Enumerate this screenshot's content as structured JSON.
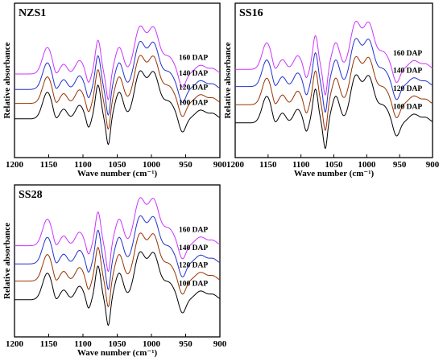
{
  "chart_data": [
    {
      "type": "line",
      "title": "NZS1",
      "xlabel": "Wave number (cm⁻¹)",
      "ylabel": "Relative absorbance",
      "xlim": [
        1200,
        900
      ],
      "x_ticks": [
        "1200",
        "1150",
        "1100",
        "1050",
        "1000",
        "950",
        "900"
      ],
      "series": [
        {
          "name": "160 DAP",
          "color": "#cc33ff"
        },
        {
          "name": "140 DAP",
          "color": "#2233cc"
        },
        {
          "name": "120 DAP",
          "color": "#993300"
        },
        {
          "name": "100 DAP",
          "color": "#000000"
        }
      ]
    },
    {
      "type": "line",
      "title": "SS16",
      "xlabel": "Wave number (cm⁻¹)",
      "ylabel": "Relative absorbance",
      "xlim": [
        1200,
        900
      ],
      "x_ticks": [
        "1200",
        "1150",
        "1100",
        "1050",
        "1000",
        "950",
        "900"
      ],
      "series": [
        {
          "name": "160 DAP",
          "color": "#cc33ff"
        },
        {
          "name": "140 DAP",
          "color": "#2233cc"
        },
        {
          "name": "120 DAP",
          "color": "#993300"
        },
        {
          "name": "100 DAP",
          "color": "#000000"
        }
      ]
    },
    {
      "type": "line",
      "title": "SS28",
      "xlabel": "Wave number (cm⁻¹)",
      "ylabel": "Relative absorbance",
      "xlim": [
        1200,
        900
      ],
      "x_ticks": [
        "1200",
        "1150",
        "1100",
        "1050",
        "1000",
        "950",
        "900"
      ],
      "series": [
        {
          "name": "160 DAP",
          "color": "#cc33ff"
        },
        {
          "name": "140 DAP",
          "color": "#2233cc"
        },
        {
          "name": "120 DAP",
          "color": "#993300"
        },
        {
          "name": "100 DAP",
          "color": "#000000"
        }
      ]
    }
  ]
}
